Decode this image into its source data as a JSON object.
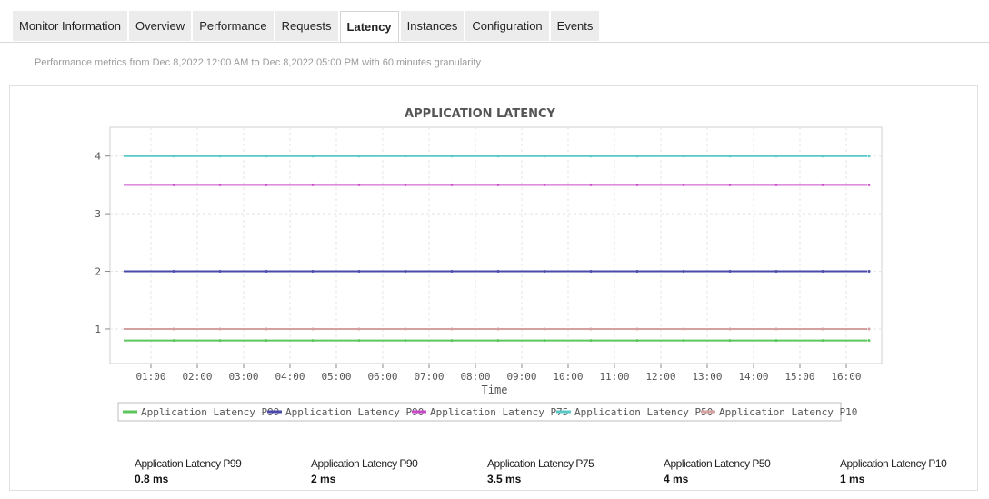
{
  "tabs": [
    {
      "label": "Monitor Information",
      "active": false
    },
    {
      "label": "Overview",
      "active": false
    },
    {
      "label": "Performance",
      "active": false
    },
    {
      "label": "Requests",
      "active": false
    },
    {
      "label": "Latency",
      "active": true
    },
    {
      "label": "Instances",
      "active": false
    },
    {
      "label": "Configuration",
      "active": false
    },
    {
      "label": "Events",
      "active": false
    }
  ],
  "subtitle": "Performance metrics from Dec 8,2022 12:00 AM to Dec 8,2022 05:00 PM with 60 minutes granularity",
  "chart_data": {
    "type": "line",
    "title": "APPLICATION LATENCY",
    "xlabel": "Time",
    "ylabel": "",
    "x": [
      "01:00",
      "02:00",
      "03:00",
      "04:00",
      "05:00",
      "06:00",
      "07:00",
      "08:00",
      "09:00",
      "10:00",
      "11:00",
      "12:00",
      "13:00",
      "14:00",
      "15:00",
      "16:00"
    ],
    "yticks": [
      1,
      2,
      3,
      4
    ],
    "ylim": [
      0.4,
      4.5
    ],
    "grid": true,
    "legend_position": "bottom",
    "series": [
      {
        "name": "Application Latency P99",
        "value": 0.8,
        "color": "#5cc75c"
      },
      {
        "name": "Application Latency P90",
        "value": 2,
        "color": "#4a4aaa"
      },
      {
        "name": "Application Latency P75",
        "value": 3.5,
        "color": "#c94ac9"
      },
      {
        "name": "Application Latency P50",
        "value": 4,
        "color": "#5ac8c8"
      },
      {
        "name": "Application Latency P10",
        "value": 1,
        "color": "#d4a0a0"
      }
    ]
  },
  "stats": [
    {
      "name": "Application Latency P99",
      "value": "0.8 ms"
    },
    {
      "name": "Application Latency P90",
      "value": "2 ms"
    },
    {
      "name": "Application Latency P75",
      "value": "3.5 ms"
    },
    {
      "name": "Application Latency P50",
      "value": "4 ms"
    },
    {
      "name": "Application Latency P10",
      "value": "1 ms"
    }
  ]
}
